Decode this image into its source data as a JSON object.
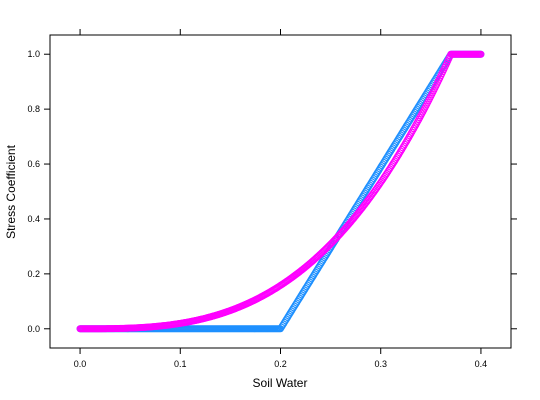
{
  "chart_data": {
    "type": "scatter",
    "title": "",
    "xlabel": "Soil Water",
    "ylabel": "Stress Coefficient",
    "xlim": [
      -0.03,
      0.43
    ],
    "ylim": [
      -0.07,
      1.07
    ],
    "x_ticks": [
      0.0,
      0.1,
      0.2,
      0.3,
      0.4
    ],
    "x_tick_labels": [
      "0.0",
      "0.1",
      "0.2",
      "0.3",
      "0.4"
    ],
    "y_ticks": [
      0.0,
      0.2,
      0.4,
      0.6,
      0.8,
      1.0
    ],
    "y_tick_labels": [
      "0.0",
      "0.2",
      "0.4",
      "0.6",
      "0.8",
      "1.0"
    ],
    "grid": false,
    "legend": "none",
    "x_range": [
      0.0,
      0.4
    ],
    "x_step": 0.001,
    "series": [
      {
        "color": "#1e90ff",
        "curve": "linear",
        "params": {
          "threshold_low": 0.2,
          "threshold_high": 0.37
        }
      },
      {
        "color": "#ff00ff",
        "curve": "power",
        "params": {
          "x_full": 0.37,
          "exponent": 3
        }
      }
    ]
  }
}
